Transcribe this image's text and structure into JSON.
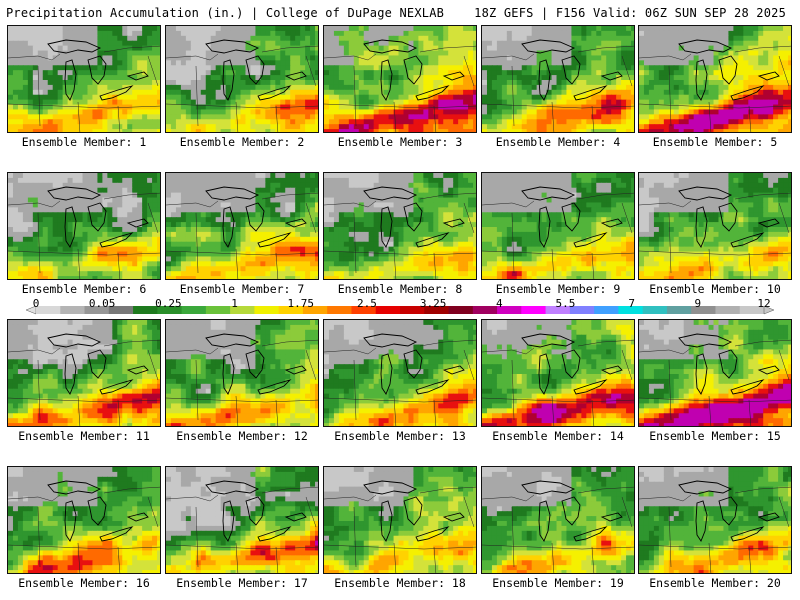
{
  "header": {
    "left": "Precipitation Accumulation (in.) | College of DuPage NEXLAB",
    "right": "18Z GEFS | F156 Valid: 06Z SUN SEP 28 2025"
  },
  "members": [
    {
      "label": "Ensemble Member: 1",
      "intensity": 0.55
    },
    {
      "label": "Ensemble Member: 2",
      "intensity": 0.5
    },
    {
      "label": "Ensemble Member: 3",
      "intensity": 0.85
    },
    {
      "label": "Ensemble Member: 4",
      "intensity": 0.55
    },
    {
      "label": "Ensemble Member: 5",
      "intensity": 0.85
    },
    {
      "label": "Ensemble Member: 6",
      "intensity": 0.35
    },
    {
      "label": "Ensemble Member: 7",
      "intensity": 0.5
    },
    {
      "label": "Ensemble Member: 8",
      "intensity": 0.4
    },
    {
      "label": "Ensemble Member: 9",
      "intensity": 0.55
    },
    {
      "label": "Ensemble Member: 10",
      "intensity": 0.4
    },
    {
      "label": "Ensemble Member: 11",
      "intensity": 0.55
    },
    {
      "label": "Ensemble Member: 12",
      "intensity": 0.5
    },
    {
      "label": "Ensemble Member: 13",
      "intensity": 0.55
    },
    {
      "label": "Ensemble Member: 14",
      "intensity": 0.8
    },
    {
      "label": "Ensemble Member: 15",
      "intensity": 0.8
    },
    {
      "label": "Ensemble Member: 16",
      "intensity": 0.55
    },
    {
      "label": "Ensemble Member: 17",
      "intensity": 0.5
    },
    {
      "label": "Ensemble Member: 18",
      "intensity": 0.5
    },
    {
      "label": "Ensemble Member: 19",
      "intensity": 0.45
    },
    {
      "label": "Ensemble Member: 20",
      "intensity": 0.5
    }
  ],
  "colorbar": {
    "ticks": [
      "0",
      "0.05",
      "0.25",
      "1",
      "1.75",
      "2.5",
      "3.25",
      "4",
      "5.5",
      "7",
      "9",
      "12"
    ],
    "colors": [
      "#d8d8d8",
      "#b4b4b4",
      "#969696",
      "#787878",
      "#1e7a1e",
      "#2a8f2a",
      "#3ba83b",
      "#6ac23a",
      "#b5d93a",
      "#f0f000",
      "#ffd200",
      "#ffa500",
      "#ff7800",
      "#ff4000",
      "#e60000",
      "#c80000",
      "#a00000",
      "#800020",
      "#a00060",
      "#d000c0",
      "#ff00ff",
      "#c080ff",
      "#8080ff",
      "#40a0ff",
      "#00e0e0",
      "#30c0c0",
      "#60a0a0",
      "#909090",
      "#b0b0b0",
      "#c8c8c8"
    ]
  }
}
